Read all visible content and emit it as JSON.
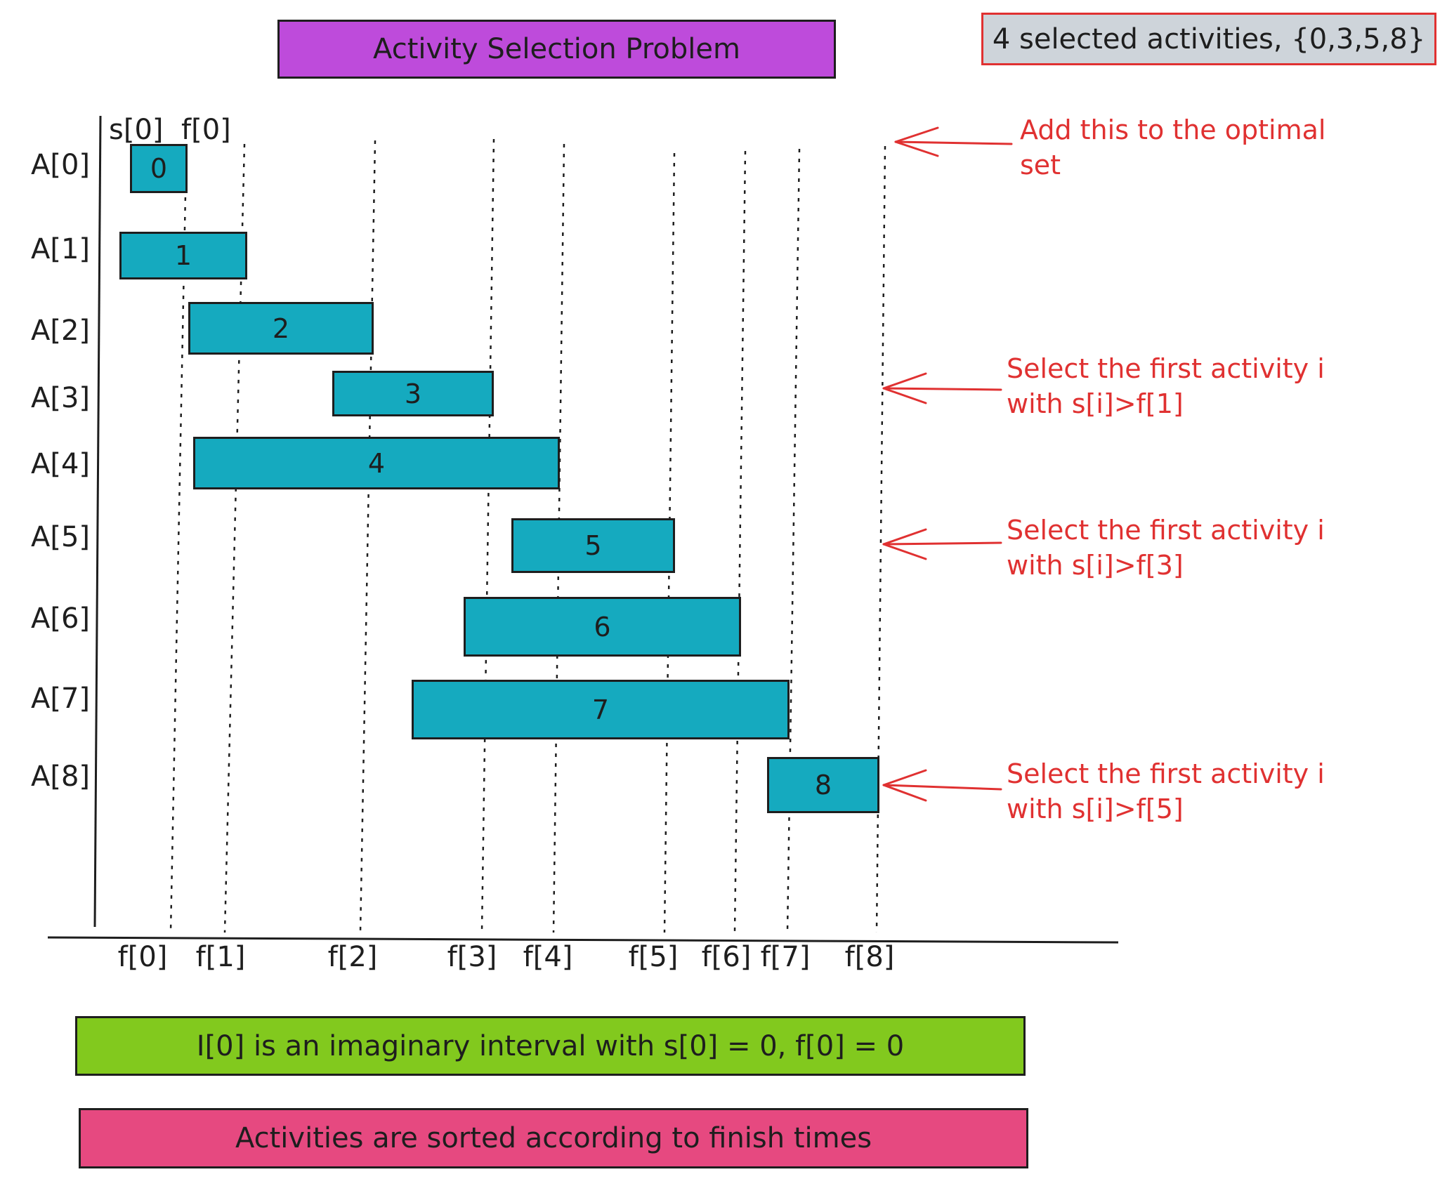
{
  "title": "Activity Selection Problem",
  "selected_summary": "4 selected activities, {0,3,5,8}",
  "top_labels": {
    "start": "s[0]",
    "finish": "f[0]"
  },
  "rows": [
    {
      "label": "A[0]",
      "bar": "0"
    },
    {
      "label": "A[1]",
      "bar": "1"
    },
    {
      "label": "A[2]",
      "bar": "2"
    },
    {
      "label": "A[3]",
      "bar": "3"
    },
    {
      "label": "A[4]",
      "bar": "4"
    },
    {
      "label": "A[5]",
      "bar": "5"
    },
    {
      "label": "A[6]",
      "bar": "6"
    },
    {
      "label": "A[7]",
      "bar": "7"
    },
    {
      "label": "A[8]",
      "bar": "8"
    }
  ],
  "finish_ticks": [
    "f[0]",
    "f[1]",
    "f[2]",
    "f[3]",
    "f[4]",
    "f[5]",
    "f[6]",
    "f[7]",
    "f[8]"
  ],
  "annotations": [
    {
      "line1": "Add this to the optimal",
      "line2": "set"
    },
    {
      "line1": "Select the first activity i",
      "line2": "with s[i]>f[1]"
    },
    {
      "line1": "Select the first activity i",
      "line2": "with s[i]>f[3]"
    },
    {
      "line1": "Select the first activity i",
      "line2": "with s[i]>f[5]"
    }
  ],
  "notes": {
    "imaginary": "I[0] is an imaginary interval with s[0] = 0, f[0] = 0",
    "sorted": "Activities are sorted according to finish times"
  },
  "colors": {
    "title_fill": "#be4bdb",
    "summary_fill": "#ced4da",
    "summary_border": "#e03131",
    "bar_fill": "#15aabf",
    "annotation": "#e03131",
    "note_green": "#82c91e",
    "note_pink": "#e64980"
  }
}
